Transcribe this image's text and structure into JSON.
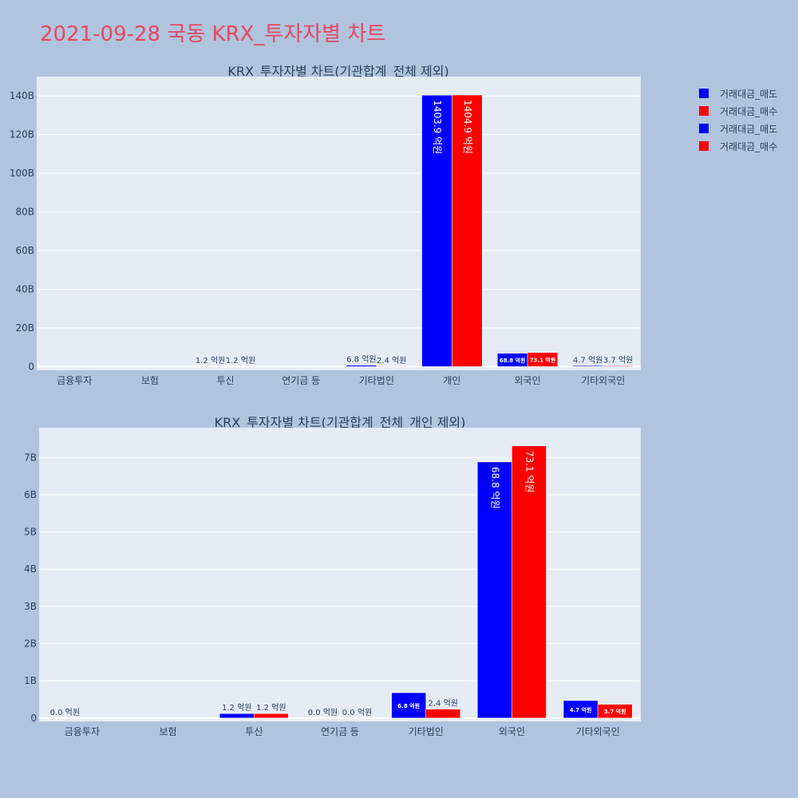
{
  "page": {
    "title": "2021-09-28 국동 KRX_투자자별 차트"
  },
  "colors": {
    "sell": "#0000ff",
    "buy": "#ff0000",
    "background": "#b0c4de",
    "plot_bg": "#e5ecf6"
  },
  "legend": [
    {
      "label": "거래대금_매도",
      "color": "#0000ff"
    },
    {
      "label": "거래대금_매수",
      "color": "#ff0000"
    },
    {
      "label": "거래대금_매도",
      "color": "#0000ff"
    },
    {
      "label": "거래대금_매수",
      "color": "#ff0000"
    }
  ],
  "chart_data": [
    {
      "type": "bar",
      "title": "KRX_투자자별 차트(기관합계_전체 제외)",
      "categories": [
        "금융투자",
        "보험",
        "투신",
        "연기금 등",
        "기타법인",
        "개인",
        "외국인",
        "기타외국인"
      ],
      "series": [
        {
          "name": "거래대금_매도",
          "values": [
            0,
            0,
            0.12,
            0,
            0.68,
            140.39,
            6.88,
            0.47
          ],
          "labels": [
            "",
            "",
            "1.2 억원",
            "",
            "6.8 억원",
            "1403.9 억원",
            "68.8 억원",
            "4.7 억원"
          ]
        },
        {
          "name": "거래대금_매수",
          "values": [
            0,
            0,
            0.12,
            0,
            0.24,
            140.49,
            7.31,
            0.37
          ],
          "labels": [
            "",
            "",
            "1.2 억원",
            "",
            "2.4 억원",
            "1404.9 억원",
            "73.1 억원",
            "3.7 억원"
          ]
        }
      ],
      "unit": "B",
      "yticks": [
        0,
        20,
        40,
        60,
        80,
        100,
        120,
        140
      ],
      "ytick_labels": [
        "0",
        "20B",
        "40B",
        "60B",
        "80B",
        "100B",
        "120B",
        "140B"
      ],
      "ylim": [
        -1.9,
        150
      ],
      "grid": true
    },
    {
      "type": "bar",
      "title": "KRX_투자자별 차트(기관합계_전체_개인 제외)",
      "categories": [
        "금융투자",
        "보험",
        "투신",
        "연기금 등",
        "기타법인",
        "외국인",
        "기타외국인"
      ],
      "series": [
        {
          "name": "거래대금_매도",
          "values": [
            0,
            0,
            0.12,
            0,
            0.68,
            6.88,
            0.47
          ],
          "labels": [
            "0.0 억원",
            "",
            "1.2 억원",
            "0.0 억원",
            "6.8 억원",
            "68.8 억원",
            "4.7 억원"
          ]
        },
        {
          "name": "거래대금_매수",
          "values": [
            0,
            0,
            0.12,
            0,
            0.24,
            7.31,
            0.37
          ],
          "labels": [
            "",
            "",
            "1.2 억원",
            "0.0 억원",
            "2.4 억원",
            "73.1 억원",
            "3.7 억원"
          ]
        }
      ],
      "unit": "B",
      "yticks": [
        0,
        1,
        2,
        3,
        4,
        5,
        6,
        7
      ],
      "ytick_labels": [
        "0",
        "1B",
        "2B",
        "3B",
        "4B",
        "5B",
        "6B",
        "7B"
      ],
      "ylim": [
        -0.09,
        7.8
      ],
      "grid": true
    }
  ]
}
